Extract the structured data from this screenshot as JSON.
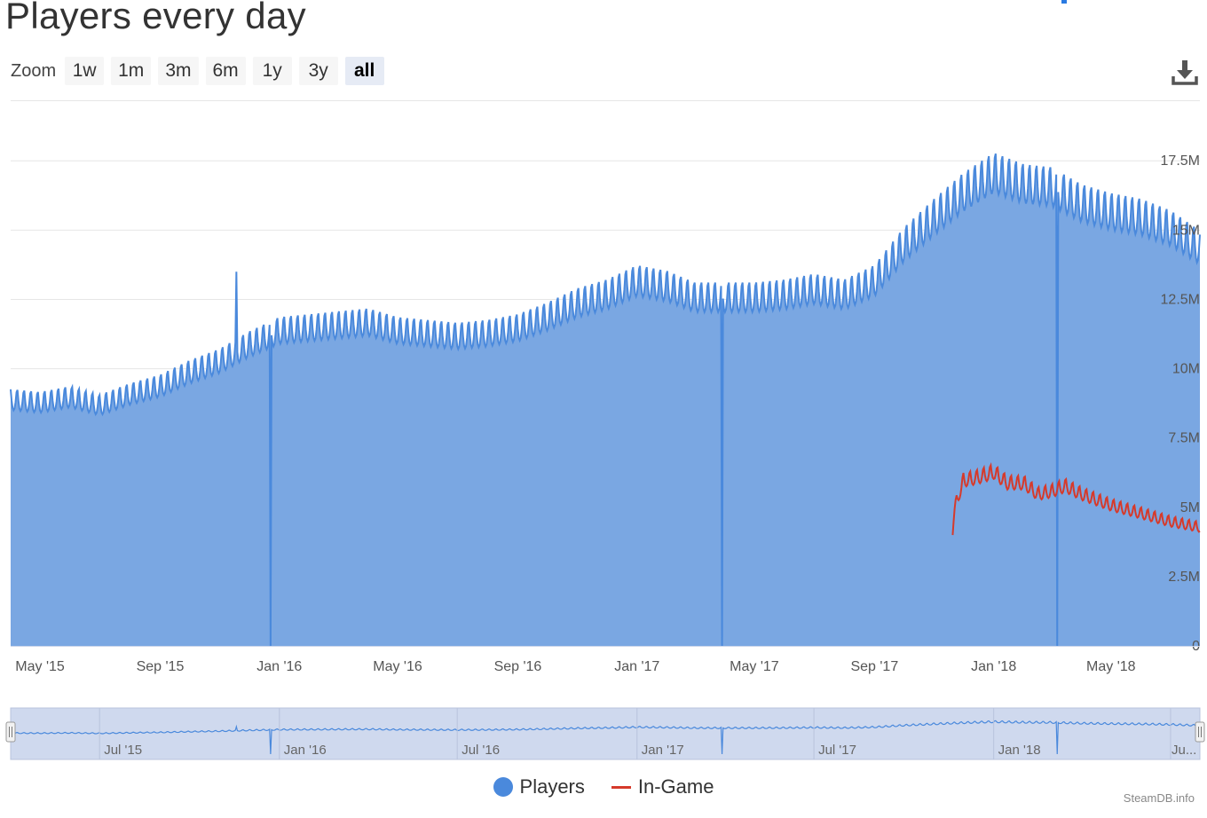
{
  "title": "Players every day",
  "zoom": {
    "label": "Zoom",
    "buttons": [
      {
        "label": "1w",
        "active": false
      },
      {
        "label": "1m",
        "active": false
      },
      {
        "label": "3m",
        "active": false
      },
      {
        "label": "6m",
        "active": false
      },
      {
        "label": "1y",
        "active": false
      },
      {
        "label": "3y",
        "active": false
      },
      {
        "label": "all",
        "active": true
      }
    ]
  },
  "download_icon": "download-icon",
  "legend": {
    "players": "Players",
    "ingame": "In-Game"
  },
  "credits": "SteamDB.info",
  "colors": {
    "players_line": "#4a89dc",
    "players_fill": "#7aa7e2",
    "ingame_line": "#d63a2b",
    "grid": "#e6e6e6",
    "navigator_bg": "#cfd9ee"
  },
  "chart_data": {
    "type": "area",
    "title": "Players every day",
    "y_unit": "players",
    "ylim": [
      0,
      18500000
    ],
    "y_ticks": [
      "0",
      "2.5M",
      "5M",
      "7.5M",
      "10M",
      "12.5M",
      "15M",
      "17.5M"
    ],
    "y_tick_values": [
      0,
      2500000,
      5000000,
      7500000,
      10000000,
      12500000,
      15000000,
      17500000
    ],
    "x_range": [
      "2015-04-01",
      "2018-07-31"
    ],
    "x_ticks": [
      {
        "label": "May '15",
        "date": "2015-05-01"
      },
      {
        "label": "Sep '15",
        "date": "2015-09-01"
      },
      {
        "label": "Jan '16",
        "date": "2016-01-01"
      },
      {
        "label": "May '16",
        "date": "2016-05-01"
      },
      {
        "label": "Sep '16",
        "date": "2016-09-01"
      },
      {
        "label": "Jan '17",
        "date": "2017-01-01"
      },
      {
        "label": "May '17",
        "date": "2017-05-01"
      },
      {
        "label": "Sep '17",
        "date": "2017-09-01"
      },
      {
        "label": "Jan '18",
        "date": "2018-01-01"
      },
      {
        "label": "May '18",
        "date": "2018-05-01"
      }
    ],
    "grid": true,
    "legend_position": "bottom-center",
    "series": [
      {
        "name": "Players",
        "style": "area",
        "weekly_oscillation": true,
        "points": [
          [
            "2015-04-01",
            8900000
          ],
          [
            "2015-05-01",
            8800000
          ],
          [
            "2015-06-01",
            9000000
          ],
          [
            "2015-07-01",
            8700000
          ],
          [
            "2015-08-01",
            9100000
          ],
          [
            "2015-09-01",
            9400000
          ],
          [
            "2015-10-01",
            9900000
          ],
          [
            "2015-11-01",
            10300000
          ],
          [
            "2015-12-01",
            10900000
          ],
          [
            "2016-01-01",
            11400000
          ],
          [
            "2016-02-01",
            11500000
          ],
          [
            "2016-03-01",
            11600000
          ],
          [
            "2016-04-01",
            11700000
          ],
          [
            "2016-05-01",
            11400000
          ],
          [
            "2016-06-01",
            11300000
          ],
          [
            "2016-07-01",
            11200000
          ],
          [
            "2016-08-01",
            11300000
          ],
          [
            "2016-09-01",
            11500000
          ],
          [
            "2016-10-01",
            11900000
          ],
          [
            "2016-11-01",
            12400000
          ],
          [
            "2016-12-01",
            12700000
          ],
          [
            "2017-01-01",
            13200000
          ],
          [
            "2017-02-01",
            13000000
          ],
          [
            "2017-03-01",
            12600000
          ],
          [
            "2017-04-01",
            12600000
          ],
          [
            "2017-05-01",
            12600000
          ],
          [
            "2017-06-01",
            12700000
          ],
          [
            "2017-07-01",
            12900000
          ],
          [
            "2017-08-01",
            12700000
          ],
          [
            "2017-09-01",
            13200000
          ],
          [
            "2017-10-01",
            14500000
          ],
          [
            "2017-11-01",
            15500000
          ],
          [
            "2017-12-01",
            16400000
          ],
          [
            "2018-01-01",
            17100000
          ],
          [
            "2018-02-01",
            16700000
          ],
          [
            "2018-03-01",
            16600000
          ],
          [
            "2018-04-01",
            16000000
          ],
          [
            "2018-05-01",
            15700000
          ],
          [
            "2018-06-01",
            15500000
          ],
          [
            "2018-07-01",
            15100000
          ],
          [
            "2018-07-31",
            14400000
          ]
        ],
        "spikes": [
          [
            "2015-11-18",
            13500000
          ]
        ],
        "dips": [
          [
            "2015-12-23",
            0
          ],
          [
            "2017-03-29",
            0
          ],
          [
            "2018-03-07",
            0
          ]
        ]
      },
      {
        "name": "In-Game",
        "style": "line",
        "weekly_oscillation": true,
        "points": [
          [
            "2017-11-20",
            4000000
          ],
          [
            "2017-11-22",
            5000000
          ],
          [
            "2017-12-01",
            6000000
          ],
          [
            "2017-12-15",
            6100000
          ],
          [
            "2018-01-01",
            6300000
          ],
          [
            "2018-01-15",
            5900000
          ],
          [
            "2018-02-01",
            5900000
          ],
          [
            "2018-02-15",
            5500000
          ],
          [
            "2018-03-01",
            5600000
          ],
          [
            "2018-03-15",
            5800000
          ],
          [
            "2018-04-01",
            5500000
          ],
          [
            "2018-05-01",
            5100000
          ],
          [
            "2018-06-01",
            4800000
          ],
          [
            "2018-07-01",
            4500000
          ],
          [
            "2018-07-31",
            4300000
          ]
        ]
      }
    ],
    "navigator": {
      "x_ticks": [
        "Jul '15",
        "Jan '16",
        "Jul '16",
        "Jan '17",
        "Jul '17",
        "Jan '18",
        "Ju..."
      ],
      "x_tick_dates": [
        "2015-07-01",
        "2016-01-01",
        "2016-07-01",
        "2017-01-01",
        "2017-07-01",
        "2018-01-01",
        "2018-07-01"
      ]
    }
  }
}
